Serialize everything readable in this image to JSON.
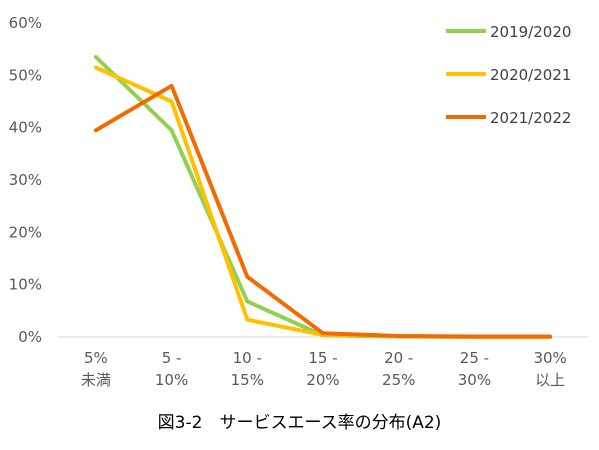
{
  "caption": "図3-2　サービスエース率の分布(A2)",
  "chart_data": {
    "type": "line",
    "title": "図3-2　サービスエース率の分布(A2)",
    "xlabel": "",
    "ylabel": "",
    "categories": [
      [
        "5%",
        "未満"
      ],
      [
        "5 -",
        "10%"
      ],
      [
        "10 -",
        "15%"
      ],
      [
        "15 -",
        "20%"
      ],
      [
        "20 -",
        "25%"
      ],
      [
        "25 -",
        "30%"
      ],
      [
        "30%",
        "以上"
      ]
    ],
    "yticks": [
      "0%",
      "10%",
      "20%",
      "30%",
      "40%",
      "50%",
      "60%"
    ],
    "ylim": [
      0,
      60
    ],
    "grid": false,
    "legend_position": "top-right",
    "series": [
      {
        "name": "2019/2020",
        "color": "#92d050",
        "values": [
          53.5,
          39.5,
          6.8,
          0.3,
          0.1,
          0.0,
          0.0
        ]
      },
      {
        "name": "2020/2021",
        "color": "#ffc000",
        "values": [
          51.5,
          45.0,
          3.3,
          0.4,
          0.2,
          0.0,
          0.0
        ]
      },
      {
        "name": "2021/2022",
        "color": "#f26b00",
        "values": [
          39.5,
          48.0,
          11.5,
          0.7,
          0.2,
          0.1,
          0.1
        ]
      }
    ]
  }
}
